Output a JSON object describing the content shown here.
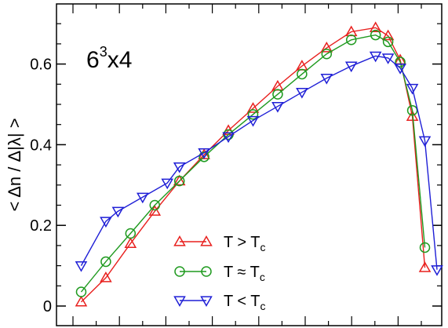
{
  "chart_data": {
    "type": "line",
    "annotation": {
      "base": "6",
      "exponent": "3",
      "suffix": "x4"
    },
    "ylabel": "< Δn / Δ|λ| >",
    "xlabel": "",
    "ylim": [
      -0.05,
      0.75
    ],
    "xlim": [
      0,
      1
    ],
    "yticks": [
      0,
      0.2,
      0.4,
      0.6
    ],
    "ytick_labels": [
      "0",
      "0.2",
      "0.4",
      "0.6"
    ],
    "grid": false,
    "legend_position": "bottom-center",
    "series": [
      {
        "name_main": "T > T",
        "name_sub": "c",
        "color": "#e8201e",
        "marker": "triangle-up",
        "x": [
          0.033,
          0.1,
          0.167,
          0.233,
          0.3,
          0.367,
          0.433,
          0.5,
          0.567,
          0.633,
          0.7,
          0.767,
          0.833,
          0.867,
          0.9,
          0.933,
          0.967
        ],
        "y": [
          0.01,
          0.07,
          0.155,
          0.235,
          0.31,
          0.375,
          0.435,
          0.49,
          0.545,
          0.595,
          0.64,
          0.68,
          0.69,
          0.67,
          0.61,
          0.47,
          0.095
        ]
      },
      {
        "name_main": "T ≈ T",
        "name_sub": "c",
        "color": "#1f9a1f",
        "marker": "circle",
        "x": [
          0.033,
          0.1,
          0.167,
          0.233,
          0.3,
          0.367,
          0.433,
          0.5,
          0.567,
          0.633,
          0.7,
          0.767,
          0.833,
          0.867,
          0.9,
          0.933,
          0.967
        ],
        "y": [
          0.035,
          0.11,
          0.18,
          0.25,
          0.31,
          0.37,
          0.425,
          0.475,
          0.525,
          0.575,
          0.625,
          0.66,
          0.672,
          0.655,
          0.605,
          0.485,
          0.145
        ]
      },
      {
        "name_main": "T < T",
        "name_sub": "c",
        "color": "#1f1fd6",
        "marker": "triangle-down",
        "x": [
          0.033,
          0.1,
          0.133,
          0.2,
          0.267,
          0.3,
          0.367,
          0.433,
          0.5,
          0.567,
          0.633,
          0.7,
          0.767,
          0.833,
          0.867,
          0.9,
          0.933,
          0.967,
          1.0
        ],
        "y": [
          0.1,
          0.21,
          0.235,
          0.27,
          0.305,
          0.345,
          0.38,
          0.42,
          0.46,
          0.495,
          0.53,
          0.565,
          0.595,
          0.62,
          0.615,
          0.59,
          0.54,
          0.41,
          0.09
        ]
      }
    ]
  }
}
